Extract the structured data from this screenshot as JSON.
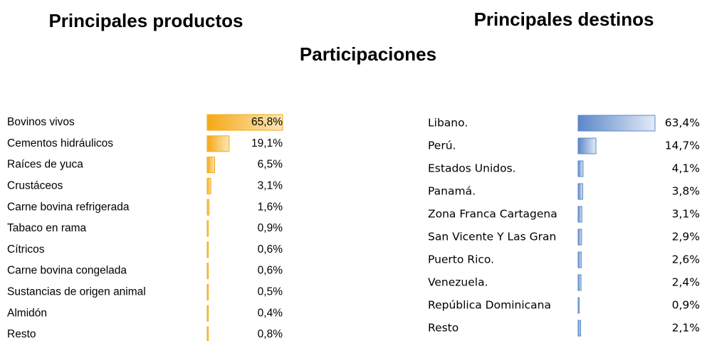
{
  "title": "Participaciones",
  "chart_data": [
    {
      "type": "bar",
      "orientation": "horizontal",
      "title": "Principales productos",
      "color": "#f5a816",
      "categories": [
        "Bovinos vivos",
        "Cementos hidráulicos",
        "Raíces de yuca",
        "Crustáceos",
        "Carne bovina refrigerada",
        "Tabaco en rama",
        "Cítricos",
        "Carne bovina congelada",
        "Sustancias de origen animal",
        "Almidón",
        "Resto"
      ],
      "values": [
        65.8,
        19.1,
        6.5,
        3.1,
        1.6,
        0.9,
        0.6,
        0.6,
        0.5,
        0.4,
        0.8
      ],
      "value_labels": [
        "65,8%",
        "19,1%",
        "6,5%",
        "3,1%",
        "1,6%",
        "0,9%",
        "0,6%",
        "0,6%",
        "0,5%",
        "0,4%",
        "0,8%"
      ]
    },
    {
      "type": "bar",
      "orientation": "horizontal",
      "title": "Principales destinos",
      "color": "#5b87c7",
      "categories": [
        "Libano.",
        "Perú.",
        "Estados Unidos.",
        "Panamá.",
        "Zona Franca Cartagena",
        "San Vicente Y Las Gran",
        "Puerto Rico.",
        "Venezuela.",
        "República Dominicana",
        "Resto"
      ],
      "values": [
        63.4,
        14.7,
        4.1,
        3.8,
        3.1,
        2.9,
        2.6,
        2.4,
        0.9,
        2.1
      ],
      "value_labels": [
        "63,4%",
        "14,7%",
        "4,1%",
        "3,8%",
        "3,1%",
        "2,9%",
        "2,6%",
        "2,4%",
        "0,9%",
        "2,1%"
      ]
    }
  ]
}
